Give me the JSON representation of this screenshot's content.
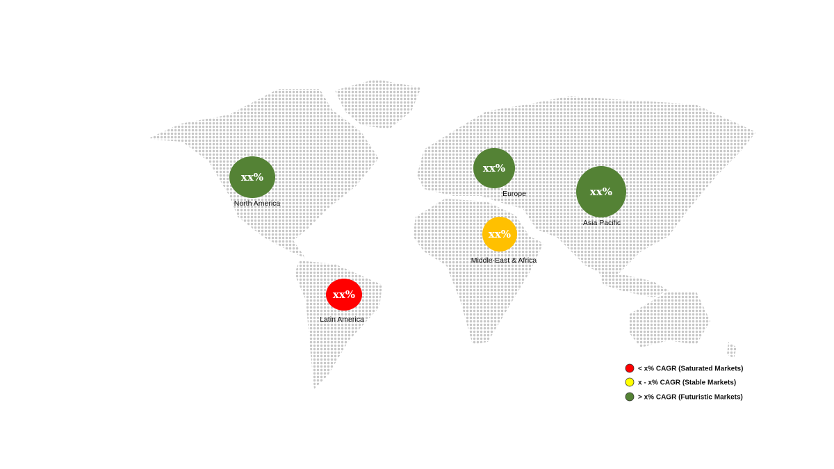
{
  "colors": {
    "saturated": "#ff0000",
    "stable": "#ffc000",
    "stable_legend": "#ffff00",
    "futuristic": "#548235",
    "map_dots": "#c6c6c6"
  },
  "regions": [
    {
      "name": "North America",
      "value": "xx%",
      "category": "futuristic"
    },
    {
      "name": "Europe",
      "value": "xx%",
      "category": "futuristic"
    },
    {
      "name": "Asia Pacific",
      "value": "xx%",
      "category": "futuristic"
    },
    {
      "name": "Middle-East & Africa",
      "value": "xx%",
      "category": "stable"
    },
    {
      "name": "Latin America",
      "value": "xx%",
      "category": "saturated"
    }
  ],
  "legend": [
    {
      "label": "< x% CAGR (Saturated Markets)",
      "color": "#ff0000"
    },
    {
      "label": "x - x% CAGR (Stable Markets)",
      "color": "#ffff00"
    },
    {
      "label": "> x% CAGR (Futuristic Markets)",
      "color": "#548235"
    }
  ]
}
